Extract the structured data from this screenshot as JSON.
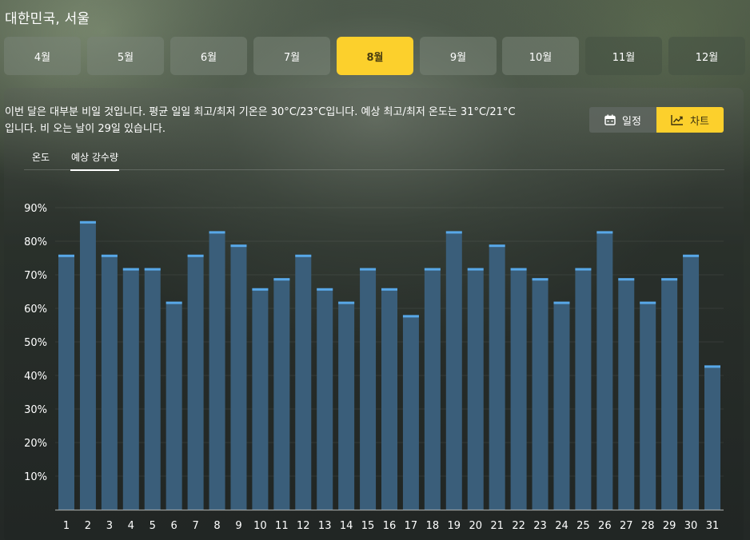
{
  "location": "대한민국, 서울",
  "months": [
    {
      "label": "4월",
      "state": "normal"
    },
    {
      "label": "5월",
      "state": "normal"
    },
    {
      "label": "6월",
      "state": "normal"
    },
    {
      "label": "7월",
      "state": "normal"
    },
    {
      "label": "8월",
      "state": "active"
    },
    {
      "label": "9월",
      "state": "normal"
    },
    {
      "label": "10월",
      "state": "normal"
    },
    {
      "label": "11월",
      "state": "dim"
    },
    {
      "label": "12월",
      "state": "dim"
    }
  ],
  "summary": "이번 달은 대부분 비일 것입니다. 평균 일일 최고/최저 기온은 30°C/23°C입니다. 예상 최고/최저 온도는 31°C/21°C입니다. 비 오는 날이 29일 있습니다.",
  "view_toggle": {
    "schedule_label": "일정",
    "chart_label": "차트",
    "schedule_icon": "calendar-icon",
    "chart_icon": "trend-chart-icon",
    "active": "chart"
  },
  "sub_tabs": [
    {
      "label": "온도",
      "active": false
    },
    {
      "label": "예상 강수량",
      "active": true
    }
  ],
  "colors": {
    "accent": "#fcd02c",
    "bar_fill": "#3a5e7a",
    "bar_cap": "#58a8e8"
  },
  "chart_data": {
    "type": "bar",
    "title": "",
    "xlabel": "",
    "ylabel": "",
    "ylim": [
      0,
      90
    ],
    "yticks": [
      10,
      20,
      30,
      40,
      50,
      60,
      70,
      80,
      90
    ],
    "ytick_format": "{v}%",
    "grid": true,
    "categories": [
      "1",
      "2",
      "3",
      "4",
      "5",
      "6",
      "7",
      "8",
      "9",
      "10",
      "11",
      "12",
      "13",
      "14",
      "15",
      "16",
      "17",
      "18",
      "19",
      "20",
      "21",
      "22",
      "23",
      "24",
      "25",
      "26",
      "27",
      "28",
      "29",
      "30",
      "31"
    ],
    "series": [
      {
        "values": [
          76,
          86,
          76,
          72,
          72,
          62,
          76,
          83,
          79,
          66,
          69,
          76,
          66,
          62,
          72,
          66,
          58,
          72,
          83,
          72,
          79,
          72,
          69,
          62,
          72,
          83,
          69,
          62,
          69,
          76,
          43
        ]
      }
    ]
  }
}
